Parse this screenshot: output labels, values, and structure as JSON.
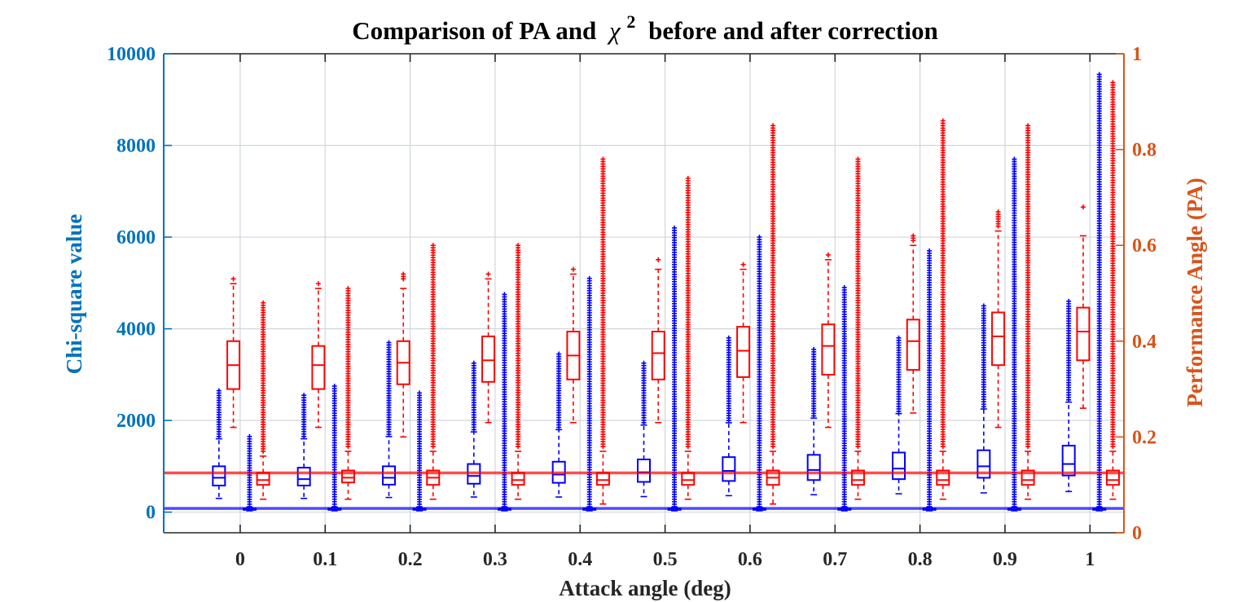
{
  "colors": {
    "left_axis": "#0072BD",
    "right_axis": "#D95319",
    "chi_box": "#0000FF",
    "pa_box": "#FF0000",
    "grid": "#D0D7DE",
    "frame": "#262626"
  },
  "chart_data": {
    "type": "boxplot",
    "title": "Comparison of PA and",
    "title_symbol": "χ",
    "title_superscript": "2",
    "title_suffix": "before and after correction",
    "xlabel": "Attack angle (deg)",
    "ylabel_left": "Chi-square value",
    "ylabel_right": "Performance Angle (PA)",
    "x_ticks": [
      "0",
      "0.1",
      "0.2",
      "0.3",
      "0.4",
      "0.5",
      "0.6",
      "0.7",
      "0.8",
      "0.9",
      "1"
    ],
    "x_tick_values": [
      0,
      0.1,
      0.2,
      0.3,
      0.4,
      0.5,
      0.6,
      0.7,
      0.8,
      0.9,
      1.0
    ],
    "xlim": [
      -0.09,
      1.04
    ],
    "ylim_left": [
      -450,
      10000
    ],
    "yticks_left": [
      "0",
      "2000",
      "4000",
      "6000",
      "8000",
      "10000"
    ],
    "ytick_values_left": [
      0,
      2000,
      4000,
      6000,
      8000,
      10000
    ],
    "ylim_right": [
      0,
      1
    ],
    "yticks_right": [
      "0",
      "0.2",
      "0.4",
      "0.6",
      "0.8",
      "1"
    ],
    "ytick_values_right": [
      0,
      0.2,
      0.4,
      0.6,
      0.8,
      1.0
    ],
    "grid": true,
    "reference_lines": [
      {
        "axis": "left",
        "value": 80,
        "color": "#0000FF"
      },
      {
        "axis": "right",
        "value": 0.125,
        "color": "#FF0000"
      }
    ],
    "series": [
      {
        "axis": "left",
        "color": "#0000FF",
        "x_offset": -0.025,
        "boxes": [
          {
            "x": 0.0,
            "whisker_low": 300,
            "q1": 580,
            "median": 750,
            "q3": 1000,
            "whisker_high": 1600,
            "outlier_low": 1650,
            "outlier_high": 2650
          },
          {
            "x": 0.1,
            "whisker_low": 300,
            "q1": 580,
            "median": 720,
            "q3": 970,
            "whisker_high": 1600,
            "outlier_low": 1650,
            "outlier_high": 2550
          },
          {
            "x": 0.2,
            "whisker_low": 320,
            "q1": 600,
            "median": 750,
            "q3": 1000,
            "whisker_high": 1650,
            "outlier_low": 1700,
            "outlier_high": 3700
          },
          {
            "x": 0.3,
            "whisker_low": 330,
            "q1": 620,
            "median": 790,
            "q3": 1050,
            "whisker_high": 1750,
            "outlier_low": 1800,
            "outlier_high": 3250
          },
          {
            "x": 0.4,
            "whisker_low": 330,
            "q1": 640,
            "median": 820,
            "q3": 1100,
            "whisker_high": 1800,
            "outlier_low": 1850,
            "outlier_high": 3450
          },
          {
            "x": 0.5,
            "whisker_low": 340,
            "q1": 660,
            "median": 870,
            "q3": 1150,
            "whisker_high": 1900,
            "outlier_low": 1950,
            "outlier_high": 3250
          },
          {
            "x": 0.6,
            "whisker_low": 360,
            "q1": 680,
            "median": 900,
            "q3": 1200,
            "whisker_high": 1950,
            "outlier_low": 2000,
            "outlier_high": 3800
          },
          {
            "x": 0.7,
            "whisker_low": 380,
            "q1": 700,
            "median": 920,
            "q3": 1250,
            "whisker_high": 2050,
            "outlier_low": 2100,
            "outlier_high": 3550
          },
          {
            "x": 0.8,
            "whisker_low": 400,
            "q1": 720,
            "median": 950,
            "q3": 1300,
            "whisker_high": 2150,
            "outlier_low": 2200,
            "outlier_high": 3800
          },
          {
            "x": 0.9,
            "whisker_low": 420,
            "q1": 750,
            "median": 1000,
            "q3": 1350,
            "whisker_high": 2250,
            "outlier_low": 2300,
            "outlier_high": 4500
          },
          {
            "x": 1.0,
            "whisker_low": 450,
            "q1": 800,
            "median": 1050,
            "q3": 1450,
            "whisker_high": 2400,
            "outlier_low": 2450,
            "outlier_high": 4600
          }
        ]
      },
      {
        "axis": "left",
        "color": "#0000FF",
        "x_offset": 0.011,
        "boxes": [
          {
            "x": 0.0,
            "whisker_low": 30,
            "q1": 50,
            "median": 60,
            "q3": 80,
            "whisker_high": 110,
            "outlier_low": 120,
            "outlier_high": 1650
          },
          {
            "x": 0.1,
            "whisker_low": 30,
            "q1": 50,
            "median": 60,
            "q3": 80,
            "whisker_high": 110,
            "outlier_low": 120,
            "outlier_high": 2750
          },
          {
            "x": 0.2,
            "whisker_low": 30,
            "q1": 50,
            "median": 60,
            "q3": 80,
            "whisker_high": 110,
            "outlier_low": 120,
            "outlier_high": 2600
          },
          {
            "x": 0.3,
            "whisker_low": 30,
            "q1": 50,
            "median": 60,
            "q3": 80,
            "whisker_high": 110,
            "outlier_low": 120,
            "outlier_high": 4750
          },
          {
            "x": 0.4,
            "whisker_low": 30,
            "q1": 50,
            "median": 60,
            "q3": 80,
            "whisker_high": 110,
            "outlier_low": 120,
            "outlier_high": 5100
          },
          {
            "x": 0.5,
            "whisker_low": 30,
            "q1": 50,
            "median": 60,
            "q3": 80,
            "whisker_high": 110,
            "outlier_low": 120,
            "outlier_high": 6200
          },
          {
            "x": 0.6,
            "whisker_low": 30,
            "q1": 50,
            "median": 60,
            "q3": 80,
            "whisker_high": 110,
            "outlier_low": 120,
            "outlier_high": 6000
          },
          {
            "x": 0.7,
            "whisker_low": 30,
            "q1": 50,
            "median": 60,
            "q3": 80,
            "whisker_high": 110,
            "outlier_low": 120,
            "outlier_high": 4900
          },
          {
            "x": 0.8,
            "whisker_low": 30,
            "q1": 50,
            "median": 60,
            "q3": 80,
            "whisker_high": 110,
            "outlier_low": 120,
            "outlier_high": 5700
          },
          {
            "x": 0.9,
            "whisker_low": 30,
            "q1": 50,
            "median": 60,
            "q3": 80,
            "whisker_high": 110,
            "outlier_low": 120,
            "outlier_high": 7700
          },
          {
            "x": 1.0,
            "whisker_low": 30,
            "q1": 50,
            "median": 60,
            "q3": 80,
            "whisker_high": 110,
            "outlier_low": 120,
            "outlier_high": 9550
          }
        ]
      },
      {
        "axis": "right",
        "color": "#FF0000",
        "x_offset": -0.008,
        "boxes": [
          {
            "x": 0.0,
            "whisker_low": 0.22,
            "q1": 0.3,
            "median": 0.35,
            "q3": 0.4,
            "whisker_high": 0.52,
            "outlier_low": 0.53,
            "outlier_high": 0.53
          },
          {
            "x": 0.1,
            "whisker_low": 0.22,
            "q1": 0.3,
            "median": 0.35,
            "q3": 0.39,
            "whisker_high": 0.51,
            "outlier_low": 0.52,
            "outlier_high": 0.52
          },
          {
            "x": 0.2,
            "whisker_low": 0.2,
            "q1": 0.31,
            "median": 0.355,
            "q3": 0.4,
            "whisker_high": 0.51,
            "outlier_low": 0.53,
            "outlier_high": 0.54
          },
          {
            "x": 0.3,
            "whisker_low": 0.23,
            "q1": 0.315,
            "median": 0.36,
            "q3": 0.41,
            "whisker_high": 0.53,
            "outlier_low": 0.54,
            "outlier_high": 0.54
          },
          {
            "x": 0.4,
            "whisker_low": 0.23,
            "q1": 0.32,
            "median": 0.37,
            "q3": 0.42,
            "whisker_high": 0.54,
            "outlier_low": 0.55,
            "outlier_high": 0.55
          },
          {
            "x": 0.5,
            "whisker_low": 0.23,
            "q1": 0.32,
            "median": 0.375,
            "q3": 0.42,
            "whisker_high": 0.55,
            "outlier_low": 0.57,
            "outlier_high": 0.57
          },
          {
            "x": 0.6,
            "whisker_low": 0.23,
            "q1": 0.325,
            "median": 0.38,
            "q3": 0.43,
            "whisker_high": 0.55,
            "outlier_low": 0.56,
            "outlier_high": 0.56
          },
          {
            "x": 0.7,
            "whisker_low": 0.22,
            "q1": 0.33,
            "median": 0.39,
            "q3": 0.435,
            "whisker_high": 0.57,
            "outlier_low": 0.58,
            "outlier_high": 0.58
          },
          {
            "x": 0.8,
            "whisker_low": 0.25,
            "q1": 0.34,
            "median": 0.4,
            "q3": 0.445,
            "whisker_high": 0.6,
            "outlier_low": 0.61,
            "outlier_high": 0.62
          },
          {
            "x": 0.9,
            "whisker_low": 0.22,
            "q1": 0.35,
            "median": 0.41,
            "q3": 0.46,
            "whisker_high": 0.63,
            "outlier_low": 0.64,
            "outlier_high": 0.67
          },
          {
            "x": 1.0,
            "whisker_low": 0.26,
            "q1": 0.36,
            "median": 0.42,
            "q3": 0.47,
            "whisker_high": 0.62,
            "outlier_low": 0.68,
            "outlier_high": 0.68
          }
        ]
      },
      {
        "axis": "right",
        "color": "#FF0000",
        "x_offset": 0.027,
        "boxes": [
          {
            "x": 0.0,
            "whisker_low": 0.07,
            "q1": 0.1,
            "median": 0.11,
            "q3": 0.125,
            "whisker_high": 0.16,
            "outlier_low": 0.17,
            "outlier_high": 0.48
          },
          {
            "x": 0.1,
            "whisker_low": 0.07,
            "q1": 0.105,
            "median": 0.115,
            "q3": 0.13,
            "whisker_high": 0.17,
            "outlier_low": 0.18,
            "outlier_high": 0.51
          },
          {
            "x": 0.2,
            "whisker_low": 0.07,
            "q1": 0.1,
            "median": 0.115,
            "q3": 0.13,
            "whisker_high": 0.17,
            "outlier_low": 0.18,
            "outlier_high": 0.6
          },
          {
            "x": 0.3,
            "whisker_low": 0.07,
            "q1": 0.1,
            "median": 0.11,
            "q3": 0.125,
            "whisker_high": 0.17,
            "outlier_low": 0.18,
            "outlier_high": 0.6
          },
          {
            "x": 0.4,
            "whisker_low": 0.06,
            "q1": 0.1,
            "median": 0.11,
            "q3": 0.125,
            "whisker_high": 0.17,
            "outlier_low": 0.18,
            "outlier_high": 0.78
          },
          {
            "x": 0.5,
            "whisker_low": 0.07,
            "q1": 0.1,
            "median": 0.11,
            "q3": 0.125,
            "whisker_high": 0.17,
            "outlier_low": 0.18,
            "outlier_high": 0.74
          },
          {
            "x": 0.6,
            "whisker_low": 0.06,
            "q1": 0.1,
            "median": 0.115,
            "q3": 0.13,
            "whisker_high": 0.17,
            "outlier_low": 0.18,
            "outlier_high": 0.85
          },
          {
            "x": 0.7,
            "whisker_low": 0.07,
            "q1": 0.1,
            "median": 0.11,
            "q3": 0.13,
            "whisker_high": 0.17,
            "outlier_low": 0.18,
            "outlier_high": 0.78
          },
          {
            "x": 0.8,
            "whisker_low": 0.07,
            "q1": 0.1,
            "median": 0.11,
            "q3": 0.13,
            "whisker_high": 0.17,
            "outlier_low": 0.18,
            "outlier_high": 0.86
          },
          {
            "x": 0.9,
            "whisker_low": 0.07,
            "q1": 0.1,
            "median": 0.11,
            "q3": 0.13,
            "whisker_high": 0.17,
            "outlier_low": 0.18,
            "outlier_high": 0.85
          },
          {
            "x": 1.0,
            "whisker_low": 0.07,
            "q1": 0.1,
            "median": 0.11,
            "q3": 0.13,
            "whisker_high": 0.17,
            "outlier_low": 0.18,
            "outlier_high": 0.94
          }
        ]
      }
    ]
  }
}
